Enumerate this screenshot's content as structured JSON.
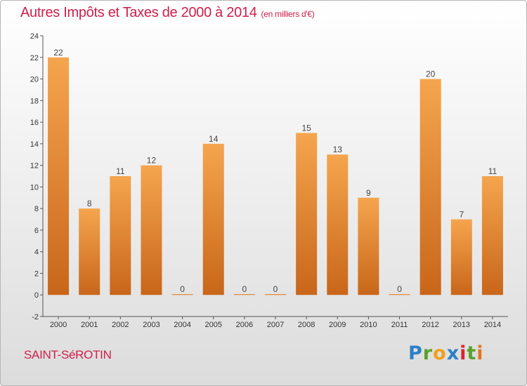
{
  "title": {
    "main": "Autres Impôts et Taxes de 2000 à 2014",
    "unit": "(en milliers d'€)"
  },
  "commune": "SAINT-SéROTIN",
  "logo": {
    "letters": [
      "P",
      "r",
      "o",
      "x",
      "i",
      "t",
      "i"
    ],
    "colors": [
      "#2d7fc6",
      "#5aa02c",
      "#f0a01e",
      "#2d7fc6",
      "#d6262e",
      "#5aa02c",
      "#e0761f"
    ]
  },
  "colors": {
    "bar_top": "#f5a54e",
    "bar_bottom": "#c8661a",
    "title": "#ce1f4a"
  },
  "chart_data": {
    "type": "bar",
    "categories": [
      "2000",
      "2001",
      "2002",
      "2003",
      "2004",
      "2005",
      "2006",
      "2007",
      "2008",
      "2009",
      "2010",
      "2011",
      "2012",
      "2013",
      "2014"
    ],
    "values": [
      22,
      8,
      11,
      12,
      0,
      14,
      0,
      0,
      15,
      13,
      9,
      0,
      20,
      7,
      11
    ],
    "ylim": [
      -2,
      24
    ],
    "yticks": [
      -2,
      0,
      2,
      4,
      6,
      8,
      10,
      12,
      14,
      16,
      18,
      20,
      22,
      24
    ],
    "grid": false,
    "xlabel": "",
    "ylabel": ""
  }
}
